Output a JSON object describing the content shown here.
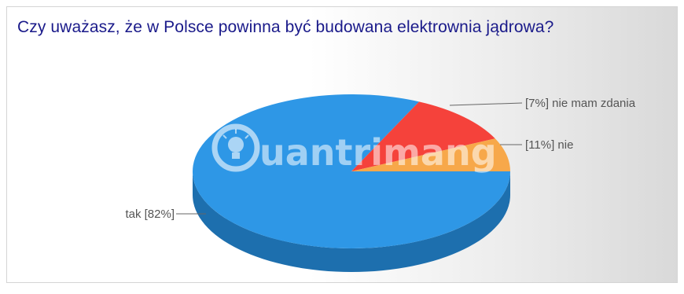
{
  "chart_data": {
    "type": "pie",
    "title": "Czy uważasz, że w Polsce powinna być budowana elektrownia jądrowa?",
    "slices": [
      {
        "label": "tak",
        "value": 82,
        "display": "tak [82%]",
        "color": "#2e97e6",
        "side_color": "#1d6fae"
      },
      {
        "label": "nie",
        "value": 11,
        "display": "[11%] nie",
        "color": "#f5423b",
        "side_color": "#b8302a"
      },
      {
        "label": "nie mam zdania",
        "value": 7,
        "display": "[7%] nie mam zdania",
        "color": "#f7a84a",
        "side_color": "#c07e32"
      }
    ],
    "style": "3d",
    "legend": "none"
  },
  "watermark": {
    "text": "uantrimang",
    "icon": "lightbulb-icon"
  }
}
